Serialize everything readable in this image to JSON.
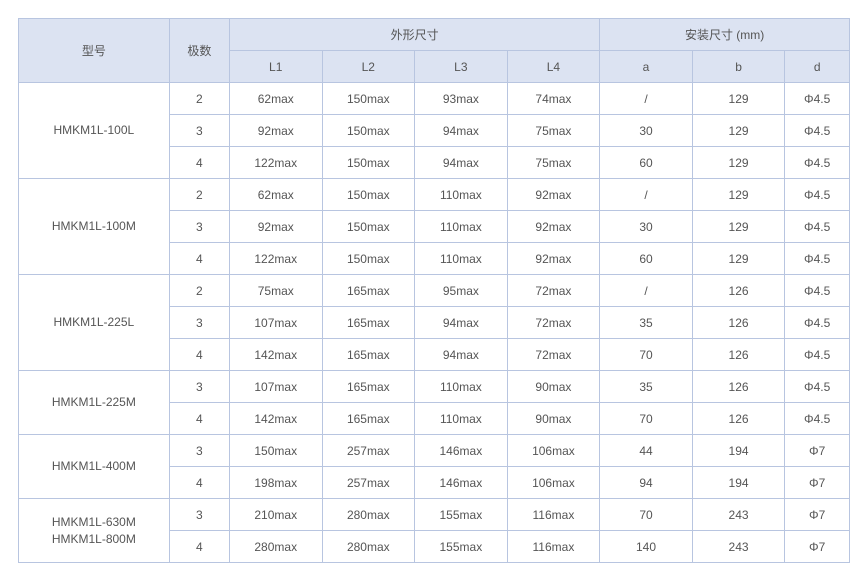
{
  "header": {
    "model": "型号",
    "poles": "极数",
    "outer_group": "外形尺寸",
    "install_group": "安装尺寸 (mm)",
    "L1": "L1",
    "L2": "L2",
    "L3": "L3",
    "L4": "L4",
    "a": "a",
    "b": "b",
    "d": "d"
  },
  "colors": {
    "header_bg": "#dce3f2",
    "border": "#b8c5e0",
    "text": "#555555",
    "cell_bg": "#ffffff"
  },
  "models": [
    {
      "name": "HMKM1L-100L",
      "rows": [
        {
          "poles": "2",
          "L1": "62max",
          "L2": "150max",
          "L3": "93max",
          "L4": "74max",
          "a": "/",
          "b": "129",
          "d": "Φ4.5"
        },
        {
          "poles": "3",
          "L1": "92max",
          "L2": "150max",
          "L3": "94max",
          "L4": "75max",
          "a": "30",
          "b": "129",
          "d": "Φ4.5"
        },
        {
          "poles": "4",
          "L1": "122max",
          "L2": "150max",
          "L3": "94max",
          "L4": "75max",
          "a": "60",
          "b": "129",
          "d": "Φ4.5"
        }
      ]
    },
    {
      "name": "HMKM1L-100M",
      "rows": [
        {
          "poles": "2",
          "L1": "62max",
          "L2": "150max",
          "L3": "110max",
          "L4": "92max",
          "a": "/",
          "b": "129",
          "d": "Φ4.5"
        },
        {
          "poles": "3",
          "L1": "92max",
          "L2": "150max",
          "L3": "110max",
          "L4": "92max",
          "a": "30",
          "b": "129",
          "d": "Φ4.5"
        },
        {
          "poles": "4",
          "L1": "122max",
          "L2": "150max",
          "L3": "110max",
          "L4": "92max",
          "a": "60",
          "b": "129",
          "d": "Φ4.5"
        }
      ]
    },
    {
      "name": "HMKM1L-225L",
      "rows": [
        {
          "poles": "2",
          "L1": "75max",
          "L2": "165max",
          "L3": "95max",
          "L4": "72max",
          "a": "/",
          "b": "126",
          "d": "Φ4.5"
        },
        {
          "poles": "3",
          "L1": "107max",
          "L2": "165max",
          "L3": "94max",
          "L4": "72max",
          "a": "35",
          "b": "126",
          "d": "Φ4.5"
        },
        {
          "poles": "4",
          "L1": "142max",
          "L2": "165max",
          "L3": "94max",
          "L4": "72max",
          "a": "70",
          "b": "126",
          "d": "Φ4.5"
        }
      ]
    },
    {
      "name": "HMKM1L-225M",
      "rows": [
        {
          "poles": "3",
          "L1": "107max",
          "L2": "165max",
          "L3": "110max",
          "L4": "90max",
          "a": "35",
          "b": "126",
          "d": "Φ4.5"
        },
        {
          "poles": "4",
          "L1": "142max",
          "L2": "165max",
          "L3": "110max",
          "L4": "90max",
          "a": "70",
          "b": "126",
          "d": "Φ4.5"
        }
      ]
    },
    {
      "name": "HMKM1L-400M",
      "rows": [
        {
          "poles": "3",
          "L1": "150max",
          "L2": "257max",
          "L3": "146max",
          "L4": "106max",
          "a": "44",
          "b": "194",
          "d": "Φ7"
        },
        {
          "poles": "4",
          "L1": "198max",
          "L2": "257max",
          "L3": "146max",
          "L4": "106max",
          "a": "94",
          "b": "194",
          "d": "Φ7"
        }
      ]
    },
    {
      "name": "HMKM1L-630M\nHMKM1L-800M",
      "rows": [
        {
          "poles": "3",
          "L1": "210max",
          "L2": "280max",
          "L3": "155max",
          "L4": "116max",
          "a": "70",
          "b": "243",
          "d": "Φ7"
        },
        {
          "poles": "4",
          "L1": "280max",
          "L2": "280max",
          "L3": "155max",
          "L4": "116max",
          "a": "140",
          "b": "243",
          "d": "Φ7"
        }
      ]
    }
  ]
}
